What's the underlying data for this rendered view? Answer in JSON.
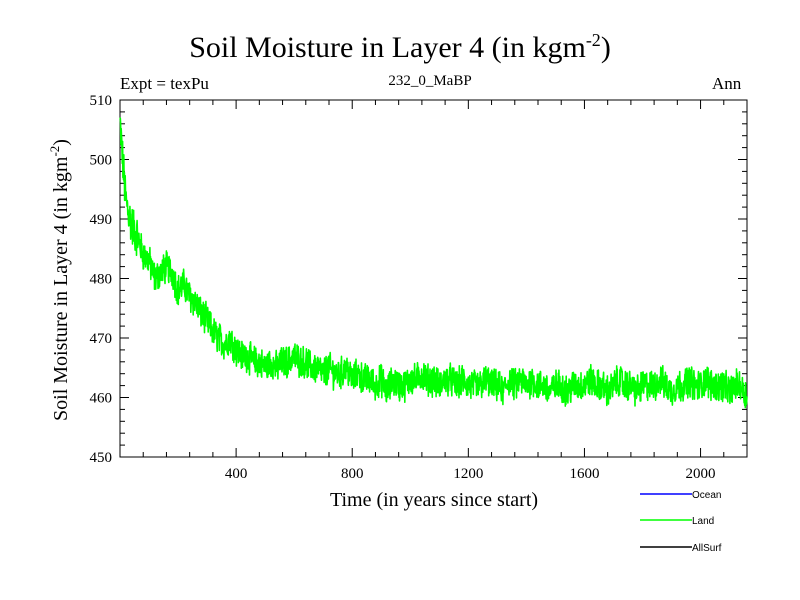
{
  "page": {
    "title": "Soil Moisture in Layer 4 (in kgm",
    "title_sup": "-2",
    "title_end": ")",
    "expt": "Expt = texPu",
    "experiment_id": "232_0_MaBP",
    "season": "Ann"
  },
  "colors": {
    "ocean": "#0000ff",
    "land": "#00ff00",
    "allsurf": "#000000"
  },
  "chart_data": {
    "type": "line",
    "title": "Soil Moisture in Layer 4 (in kgm-2)",
    "xlabel": "Time (in years since start)",
    "ylabel": "Soil Moisture in Layer 4 (in kgm-2)",
    "ylabel_main": "Soil Moisture in Layer 4 (in kgm",
    "ylabel_sup": "-2",
    "ylabel_end": ")",
    "xlim": [
      0,
      2160
    ],
    "ylim": [
      450,
      510
    ],
    "xticks": [
      400,
      800,
      1200,
      1600,
      2000
    ],
    "xtick_labels": [
      "400",
      "800",
      "1200",
      "1600",
      "2000"
    ],
    "yticks": [
      450,
      460,
      470,
      480,
      490,
      500,
      510
    ],
    "ytick_labels": [
      "450",
      "460",
      "470",
      "480",
      "490",
      "500",
      "510"
    ],
    "legend": [
      "Ocean",
      "Land",
      "AllSurf"
    ],
    "series": [
      {
        "name": "Land",
        "color": "#00ff00",
        "x_step": 20,
        "x": [
          0,
          20,
          40,
          60,
          80,
          100,
          120,
          140,
          160,
          180,
          200,
          220,
          240,
          260,
          280,
          300,
          320,
          340,
          360,
          380,
          400,
          420,
          440,
          460,
          480,
          500,
          520,
          540,
          560,
          580,
          600,
          620,
          640,
          660,
          680,
          700,
          720,
          740,
          760,
          780,
          800,
          820,
          840,
          860,
          880,
          900,
          920,
          940,
          960,
          980,
          1000,
          1020,
          1040,
          1060,
          1080,
          1100,
          1120,
          1140,
          1160,
          1180,
          1200,
          1220,
          1240,
          1260,
          1280,
          1300,
          1320,
          1340,
          1360,
          1380,
          1400,
          1420,
          1440,
          1460,
          1480,
          1500,
          1520,
          1540,
          1560,
          1580,
          1600,
          1620,
          1640,
          1660,
          1680,
          1700,
          1720,
          1740,
          1760,
          1780,
          1800,
          1820,
          1840,
          1860,
          1880,
          1900,
          1920,
          1940,
          1960,
          1980,
          2000,
          2020,
          2040,
          2060,
          2080,
          2100,
          2120,
          2140,
          2160
        ],
        "values": [
          506,
          493,
          489,
          487,
          484,
          483,
          480,
          481,
          482,
          481,
          478,
          479,
          477,
          476,
          474,
          473,
          471,
          470,
          469,
          470,
          468,
          467,
          467,
          466,
          466,
          465,
          466,
          465,
          466,
          466,
          467,
          466,
          466,
          465,
          465,
          464,
          465,
          464,
          464,
          465,
          463,
          464,
          463,
          463,
          462,
          463,
          461,
          463,
          462,
          462,
          463,
          463,
          464,
          463,
          463,
          462,
          463,
          463,
          462,
          463,
          462,
          462,
          462,
          463,
          462,
          462,
          461,
          463,
          462,
          463,
          462,
          463,
          462,
          462,
          461,
          462,
          462,
          461,
          462,
          462,
          462,
          463,
          462,
          462,
          461,
          462,
          463,
          462,
          462,
          461,
          462,
          462,
          462,
          463,
          462,
          461,
          462,
          462,
          463,
          462,
          462,
          463,
          462,
          462,
          462,
          461,
          462,
          462,
          460
        ]
      },
      {
        "name": "Ocean",
        "color": "#0000ff",
        "values": []
      },
      {
        "name": "AllSurf",
        "color": "#000000",
        "values": []
      }
    ]
  }
}
